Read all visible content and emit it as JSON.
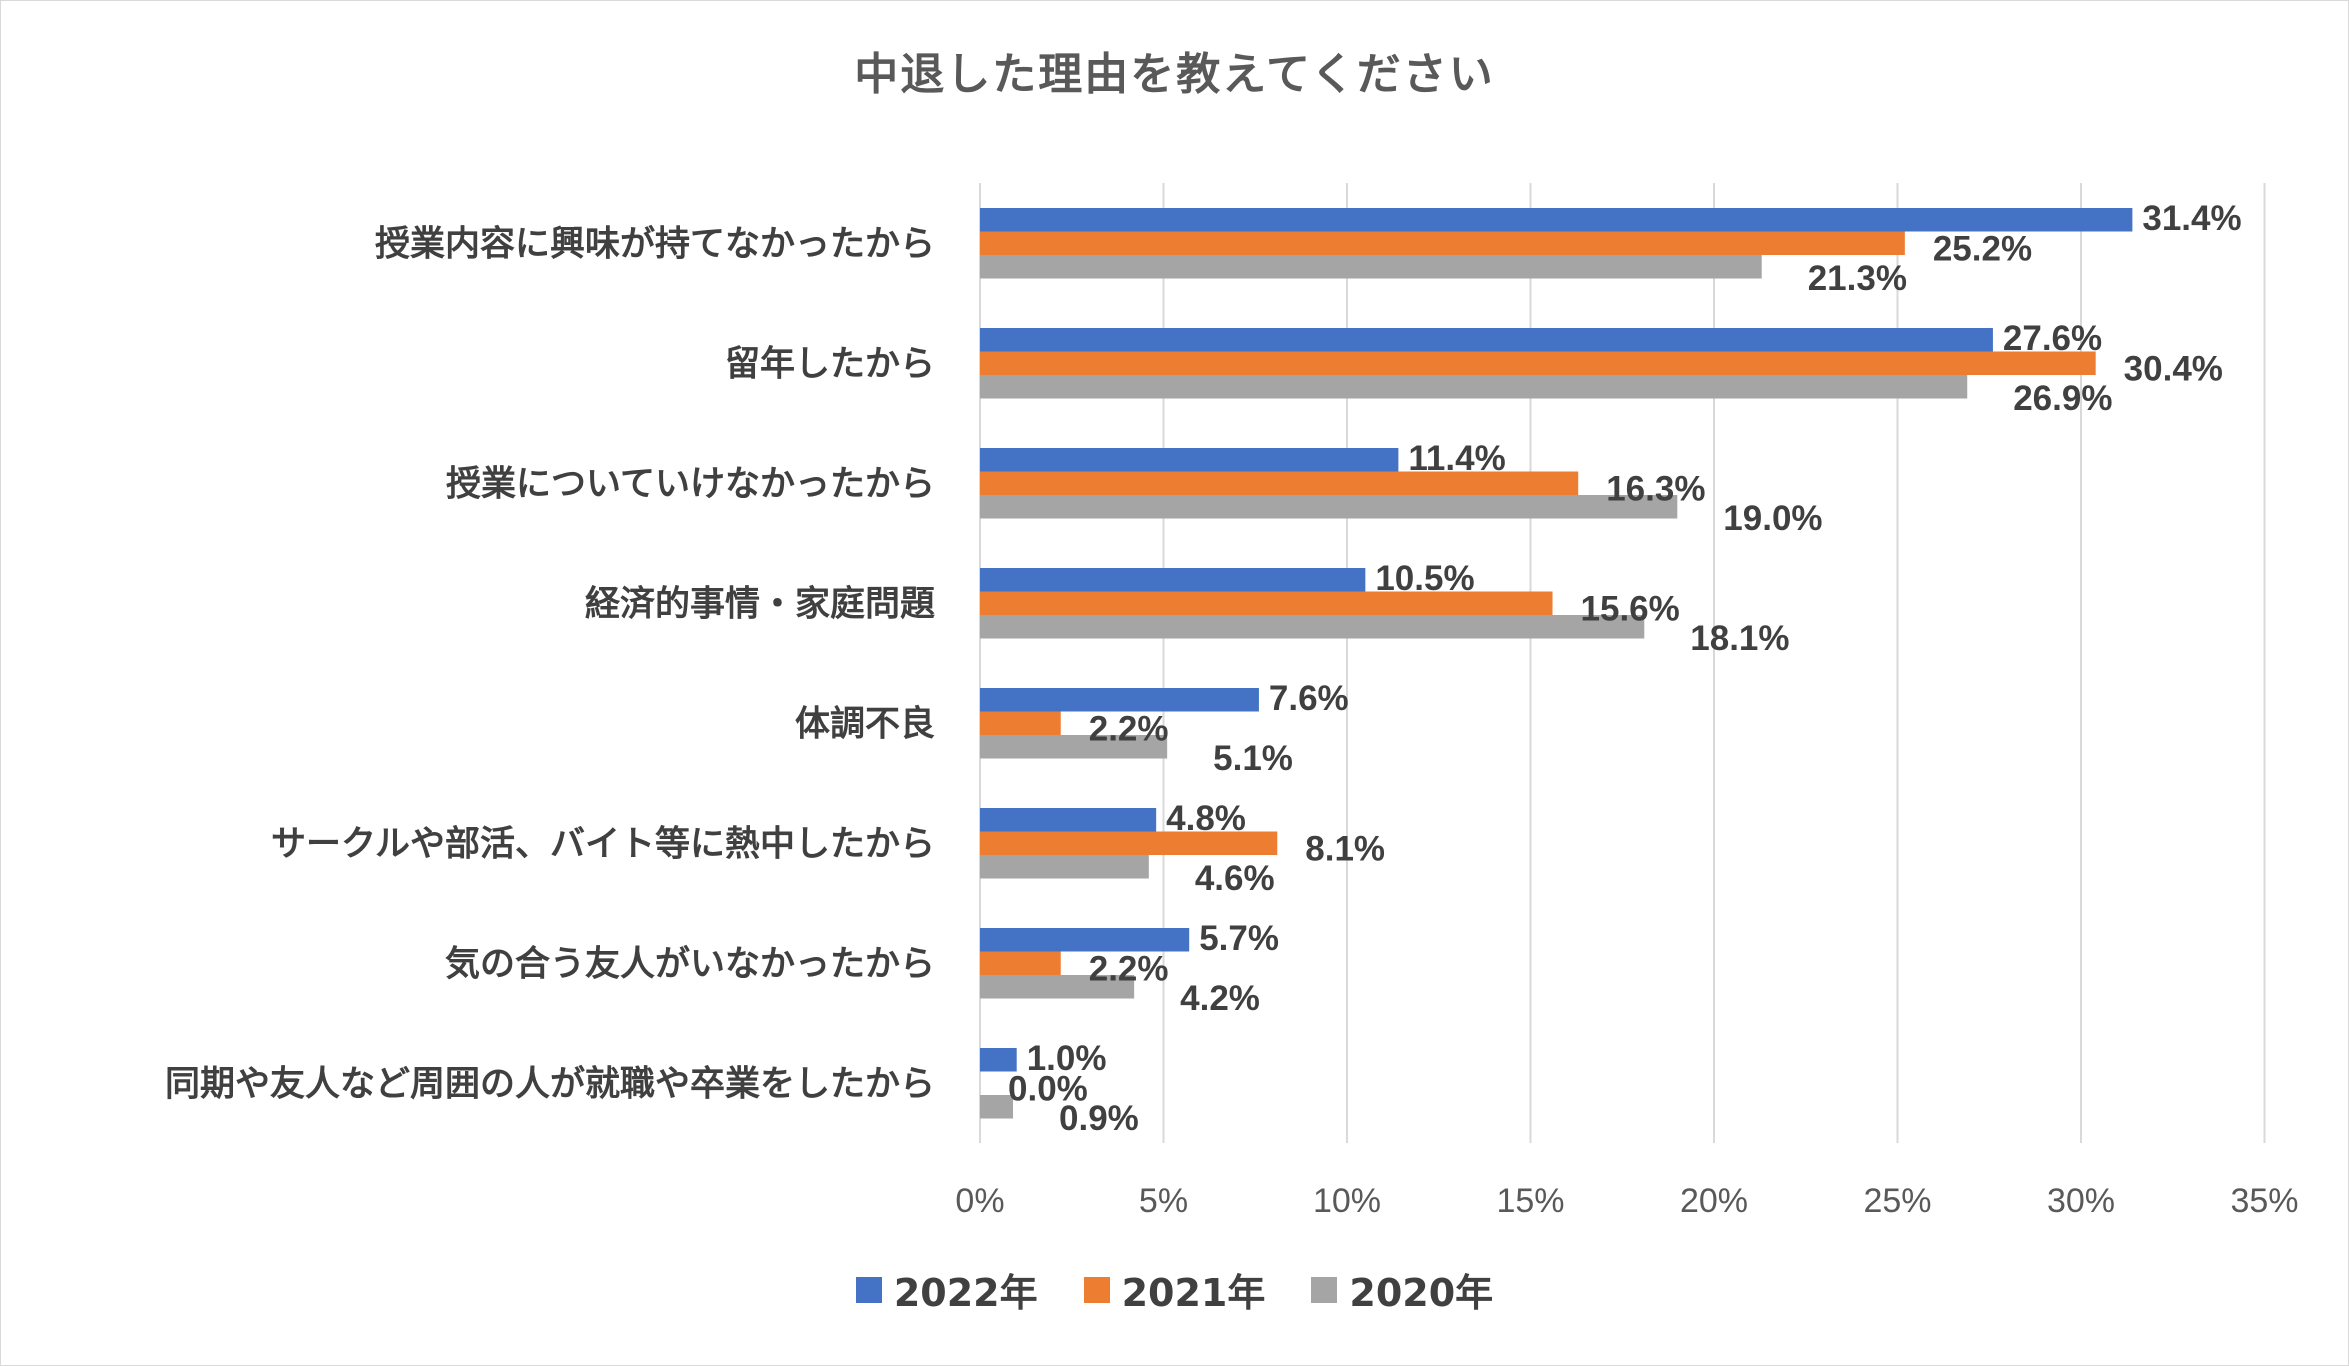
{
  "chart_data": {
    "type": "bar",
    "orientation": "horizontal",
    "title": "中退した理由を教えてください",
    "categories": [
      "授業内容に興味が持てなかったから",
      "留年したから",
      "授業についていけなかったから",
      "経済的事情・家庭問題",
      "体調不良",
      "サークルや部活、バイト等に熱中したから",
      "気の合う友人がいなかったから",
      "同期や友人など周囲の人が就職や卒業をしたから"
    ],
    "series": [
      {
        "name": "2022年",
        "color": "#4472c4",
        "values": [
          31.4,
          27.6,
          11.4,
          10.5,
          7.6,
          4.8,
          5.7,
          1.0
        ],
        "labels": [
          "31.4%",
          "27.6%",
          "11.4%",
          "10.5%",
          "7.6%",
          "4.8%",
          "5.7%",
          "1.0%"
        ]
      },
      {
        "name": "2021年",
        "color": "#ed7d31",
        "values": [
          25.2,
          30.4,
          16.3,
          15.6,
          2.2,
          8.1,
          2.2,
          0.0
        ],
        "labels": [
          "25.2%",
          "30.4%",
          "16.3%",
          "15.6%",
          "2.2%",
          "8.1%",
          "2.2%",
          "0.0%"
        ]
      },
      {
        "name": "2020年",
        "color": "#a5a5a5",
        "values": [
          21.3,
          26.9,
          19.0,
          18.1,
          5.1,
          4.6,
          4.2,
          0.9
        ],
        "labels": [
          "21.3%",
          "26.9%",
          "19.0%",
          "18.1%",
          "5.1%",
          "4.6%",
          "4.2%",
          "0.9%"
        ]
      }
    ],
    "xlim": [
      0,
      35
    ],
    "ticks": [
      0,
      5,
      10,
      15,
      20,
      25,
      30,
      35
    ],
    "tick_labels": [
      "0%",
      "5%",
      "10%",
      "15%",
      "20%",
      "25%",
      "30%",
      "35%"
    ],
    "grid": "vertical",
    "legend_position": "bottom",
    "gridline_color": "#d9d9d9"
  }
}
